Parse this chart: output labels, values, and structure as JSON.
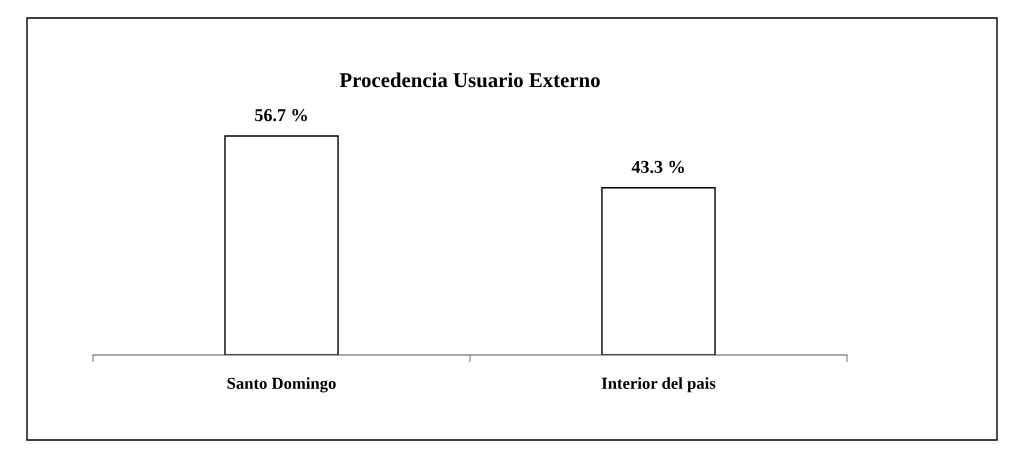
{
  "chart_data": {
    "type": "bar",
    "title": "Procedencia Usuario Externo",
    "categories": [
      "Santo Domingo",
      "Interior del pais"
    ],
    "values": [
      56.7,
      43.3
    ],
    "value_labels": [
      "56.7 %",
      "43.3 %"
    ],
    "color": "#ffffff",
    "grid": false,
    "legend": false
  }
}
